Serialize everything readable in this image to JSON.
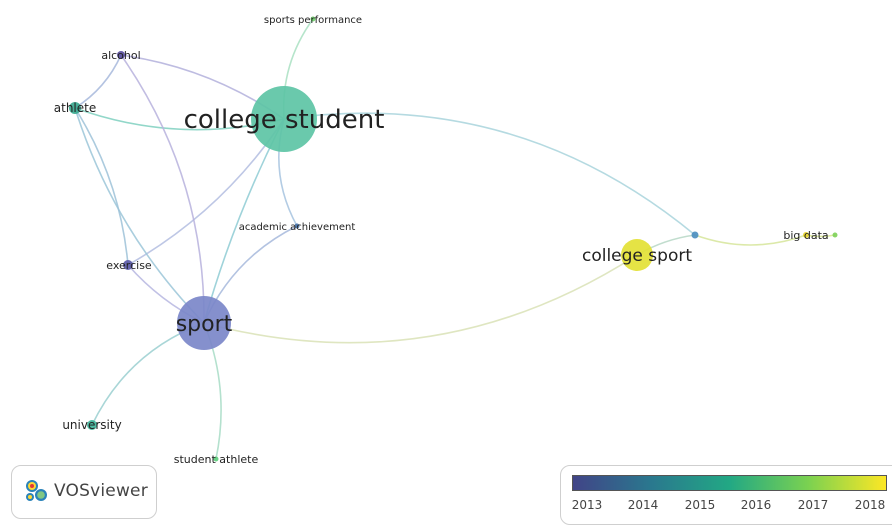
{
  "network": {
    "nodes": [
      {
        "id": "college-student",
        "label": "college student",
        "color": "#5dc4a5"
      },
      {
        "id": "sport",
        "label": "sport",
        "color": "#7b87c9"
      },
      {
        "id": "college-sport",
        "label": "college sport",
        "color": "#e3e135"
      },
      {
        "id": "athlete",
        "label": "athlete",
        "color": "#3aa98f"
      },
      {
        "id": "alcohol",
        "label": "alcohol",
        "color": "#5a4fa0"
      },
      {
        "id": "exercise",
        "label": "exercise",
        "color": "#5b5aa8"
      },
      {
        "id": "university",
        "label": "university",
        "color": "#3fb59a"
      },
      {
        "id": "student-athlete",
        "label": "student athlete",
        "color": "#5fce7e"
      },
      {
        "id": "academic-achievement",
        "label": "academic achievement",
        "color": "#4572a8"
      },
      {
        "id": "sports-performance",
        "label": "sports performance",
        "color": "#6fd36a"
      },
      {
        "id": "big-data",
        "label": "big data",
        "color": "#e7d52a"
      },
      {
        "id": "unlabeled-node-1",
        "label": "",
        "color": "#4c8fc0"
      },
      {
        "id": "unlabeled-node-2",
        "label": "",
        "color": "#7fd15a"
      }
    ],
    "links": [
      {
        "source": "college-student",
        "target": "sport",
        "color": "#8ecbd4"
      },
      {
        "source": "college-student",
        "target": "athlete",
        "color": "#7fd0bf"
      },
      {
        "source": "college-student",
        "target": "alcohol",
        "color": "#b3b0dc"
      },
      {
        "source": "college-student",
        "target": "exercise",
        "color": "#b3bde0"
      },
      {
        "source": "college-student",
        "target": "sports-performance",
        "color": "#a9e0c2"
      },
      {
        "source": "college-student",
        "target": "academic-achievement",
        "color": "#a6c3df"
      },
      {
        "source": "college-student",
        "target": "unlabeled-node-1",
        "color": "#a8d4dc"
      },
      {
        "source": "sport",
        "target": "athlete",
        "color": "#9bc6d8"
      },
      {
        "source": "sport",
        "target": "alcohol",
        "color": "#b7b2dd"
      },
      {
        "source": "sport",
        "target": "exercise",
        "color": "#b6b6e0"
      },
      {
        "source": "sport",
        "target": "university",
        "color": "#9acfd0"
      },
      {
        "source": "sport",
        "target": "student-athlete",
        "color": "#a7dcc5"
      },
      {
        "source": "sport",
        "target": "academic-achievement",
        "color": "#a6b8dc"
      },
      {
        "source": "sport",
        "target": "college-sport",
        "color": "#d9e2b6"
      },
      {
        "source": "athlete",
        "target": "alcohol",
        "color": "#a7b9dc"
      },
      {
        "source": "athlete",
        "target": "exercise",
        "color": "#9ec2d8"
      },
      {
        "source": "college-sport",
        "target": "unlabeled-node-1",
        "color": "#b6d7c6"
      },
      {
        "source": "unlabeled-node-1",
        "target": "big-data",
        "color": "#d6e59a"
      },
      {
        "source": "big-data",
        "target": "unlabeled-node-2",
        "color": "#d8e792"
      }
    ]
  },
  "branding": {
    "logo_text": "VOSviewer"
  },
  "legend": {
    "ticks": [
      "2013",
      "2014",
      "2015",
      "2016",
      "2017",
      "2018"
    ],
    "gradient": [
      "#414487",
      "#2a788e",
      "#22a884",
      "#7ad151",
      "#fde725"
    ]
  }
}
